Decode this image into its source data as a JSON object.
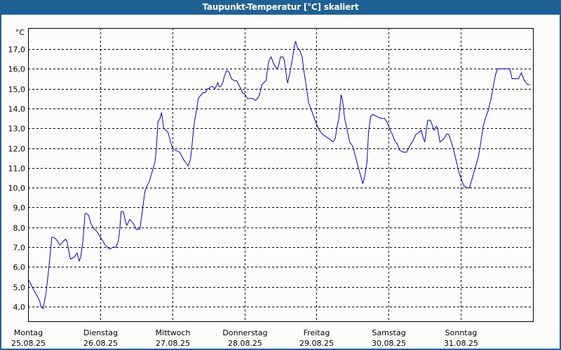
{
  "window": {
    "title": "Taupunkt-Temperatur [°C] skaliert",
    "frame_color": "#1e6194",
    "background_color": "#fcfdfb"
  },
  "chart_data": {
    "type": "line",
    "title": "Taupunkt-Temperatur [°C] skaliert",
    "xlabel": "",
    "ylabel": "°C",
    "ylim": [
      3.2,
      17.9
    ],
    "grid": true,
    "legend": null,
    "line_color": "#0000c8",
    "y_ticks": [
      {
        "value": 4.0,
        "label": "4,0"
      },
      {
        "value": 5.0,
        "label": "5,0"
      },
      {
        "value": 6.0,
        "label": "6,0"
      },
      {
        "value": 7.0,
        "label": "7,0"
      },
      {
        "value": 8.0,
        "label": "8,0"
      },
      {
        "value": 9.0,
        "label": "9,0"
      },
      {
        "value": 10.0,
        "label": "10,0"
      },
      {
        "value": 11.0,
        "label": "11,0"
      },
      {
        "value": 12.0,
        "label": "12,0"
      },
      {
        "value": 13.0,
        "label": "13,0"
      },
      {
        "value": 14.0,
        "label": "14,0"
      },
      {
        "value": 15.0,
        "label": "15,0"
      },
      {
        "value": 16.0,
        "label": "16,0"
      },
      {
        "value": 17.0,
        "label": "17,0"
      }
    ],
    "categories": [
      {
        "day": "Montag",
        "date": "25.08.25"
      },
      {
        "day": "Dienstag",
        "date": "26.08.25"
      },
      {
        "day": "Mittwoch",
        "date": "27.08.25"
      },
      {
        "day": "Donnerstag",
        "date": "28.08.25"
      },
      {
        "day": "Freitag",
        "date": "29.08.25"
      },
      {
        "day": "Samstag",
        "date": "30.08.25"
      },
      {
        "day": "Sonntag",
        "date": "31.08.25"
      }
    ],
    "xlim_days": [
      0,
      7
    ],
    "series": [
      {
        "name": "Taupunkt-Temperatur",
        "x_days": [
          0.0,
          0.07,
          0.13,
          0.16,
          0.18,
          0.21,
          0.25,
          0.29,
          0.33,
          0.35,
          0.39,
          0.44,
          0.49,
          0.52,
          0.54,
          0.58,
          0.59,
          0.64,
          0.68,
          0.71,
          0.73,
          0.76,
          0.79,
          0.81,
          0.84,
          0.87,
          0.9,
          0.95,
          0.97,
          1.02,
          1.07,
          1.13,
          1.18,
          1.22,
          1.25,
          1.27,
          1.29,
          1.32,
          1.35,
          1.37,
          1.41,
          1.46,
          1.5,
          1.55,
          1.58,
          1.62,
          1.65,
          1.68,
          1.72,
          1.76,
          1.78,
          1.8,
          1.83,
          1.85,
          1.88,
          1.91,
          1.94,
          1.97,
          2.0,
          2.04,
          2.1,
          2.16,
          2.22,
          2.25,
          2.27,
          2.29,
          2.31,
          2.34,
          2.36,
          2.4,
          2.43,
          2.46,
          2.49,
          2.51,
          2.53,
          2.56,
          2.59,
          2.62,
          2.63,
          2.65,
          2.67,
          2.7,
          2.72,
          2.75,
          2.77,
          2.79,
          2.82,
          2.86,
          2.89,
          2.92,
          2.95,
          2.97,
          3.01,
          3.04,
          3.08,
          3.12,
          3.15,
          3.18,
          3.21,
          3.24,
          3.27,
          3.3,
          3.32,
          3.34,
          3.37,
          3.4,
          3.45,
          3.47,
          3.5,
          3.53,
          3.55,
          3.57,
          3.59,
          3.6,
          3.63,
          3.66,
          3.69,
          3.71,
          3.73,
          3.77,
          3.8,
          3.82,
          3.85,
          3.89,
          3.92,
          3.95,
          3.98,
          4.01,
          4.04,
          4.08,
          4.12,
          4.16,
          4.2,
          4.23,
          4.26,
          4.28,
          4.31,
          4.34,
          4.36,
          4.39,
          4.43,
          4.46,
          4.5,
          4.53,
          4.58,
          4.62,
          4.64,
          4.67,
          4.7,
          4.72,
          4.75,
          4.78,
          4.83,
          4.89,
          4.94,
          4.98,
          5.01,
          5.05,
          5.08,
          5.12,
          5.15,
          5.2,
          5.25,
          5.29,
          5.34,
          5.38,
          5.42,
          5.45,
          5.48,
          5.5,
          5.53,
          5.54,
          5.58,
          5.61,
          5.63,
          5.66,
          5.68,
          5.71,
          5.74,
          5.77,
          5.8,
          5.83,
          5.86,
          5.9,
          5.94,
          5.98,
          6.01,
          6.04,
          6.08,
          6.12,
          6.16,
          6.2,
          6.24,
          6.27,
          6.31,
          6.34,
          6.38,
          6.42,
          6.45,
          6.48,
          6.51,
          6.55,
          6.58,
          6.63,
          6.68,
          6.71,
          6.75,
          6.8,
          6.84,
          6.87,
          6.9,
          6.93,
          6.96,
          7.0
        ],
        "values": [
          5.4,
          4.9,
          4.5,
          4.3,
          4.0,
          3.9,
          4.7,
          6.0,
          7.5,
          7.5,
          7.4,
          7.1,
          7.3,
          7.4,
          7.3,
          6.5,
          6.4,
          6.5,
          6.7,
          6.3,
          6.5,
          7.3,
          8.7,
          8.7,
          8.6,
          8.2,
          8.0,
          7.8,
          7.7,
          7.4,
          7.1,
          6.9,
          7.0,
          7.0,
          7.3,
          7.8,
          8.8,
          8.8,
          8.3,
          8.1,
          8.4,
          8.2,
          7.9,
          7.9,
          8.7,
          9.8,
          10.1,
          10.3,
          10.8,
          11.3,
          12.0,
          13.3,
          13.5,
          13.8,
          13.0,
          12.9,
          12.8,
          12.4,
          12.0,
          11.9,
          11.8,
          11.4,
          11.1,
          11.4,
          12.0,
          12.8,
          13.4,
          14.0,
          14.5,
          14.7,
          14.8,
          14.8,
          15.0,
          15.0,
          15.1,
          15.1,
          15.0,
          15.2,
          15.3,
          15.1,
          15.1,
          15.3,
          15.6,
          15.9,
          15.9,
          15.8,
          15.5,
          15.4,
          15.4,
          15.2,
          15.0,
          14.8,
          14.7,
          14.5,
          14.5,
          14.5,
          14.4,
          14.5,
          14.7,
          15.2,
          15.3,
          15.4,
          16.0,
          16.4,
          16.6,
          16.3,
          16.0,
          16.1,
          16.6,
          16.6,
          16.5,
          16.0,
          15.4,
          15.3,
          15.8,
          16.4,
          17.1,
          17.4,
          17.1,
          16.9,
          16.6,
          16.0,
          15.3,
          14.3,
          14.0,
          13.7,
          13.4,
          13.1,
          12.9,
          12.7,
          12.6,
          12.5,
          12.4,
          12.3,
          12.5,
          13.0,
          13.5,
          14.7,
          14.4,
          13.5,
          12.8,
          12.3,
          12.1,
          11.7,
          11.0,
          10.5,
          10.2,
          10.6,
          11.3,
          12.8,
          13.6,
          13.7,
          13.6,
          13.5,
          13.5,
          13.3,
          13.0,
          12.7,
          12.4,
          12.2,
          11.9,
          11.8,
          11.8,
          12.1,
          12.4,
          12.7,
          12.8,
          12.9,
          12.5,
          12.3,
          13.1,
          13.4,
          13.4,
          13.1,
          12.9,
          13.1,
          13.0,
          12.3,
          12.4,
          12.5,
          12.7,
          12.7,
          12.4,
          11.9,
          11.3,
          10.7,
          10.4,
          10.1,
          10.0,
          10.0,
          10.5,
          11.0,
          11.5,
          12.1,
          13.1,
          13.5,
          13.9,
          14.5,
          15.1,
          15.7,
          16.0,
          16.0,
          16.0,
          16.0,
          16.0,
          15.5,
          15.5,
          15.5,
          15.8,
          15.5,
          15.3,
          15.2,
          15.2
        ]
      }
    ]
  }
}
